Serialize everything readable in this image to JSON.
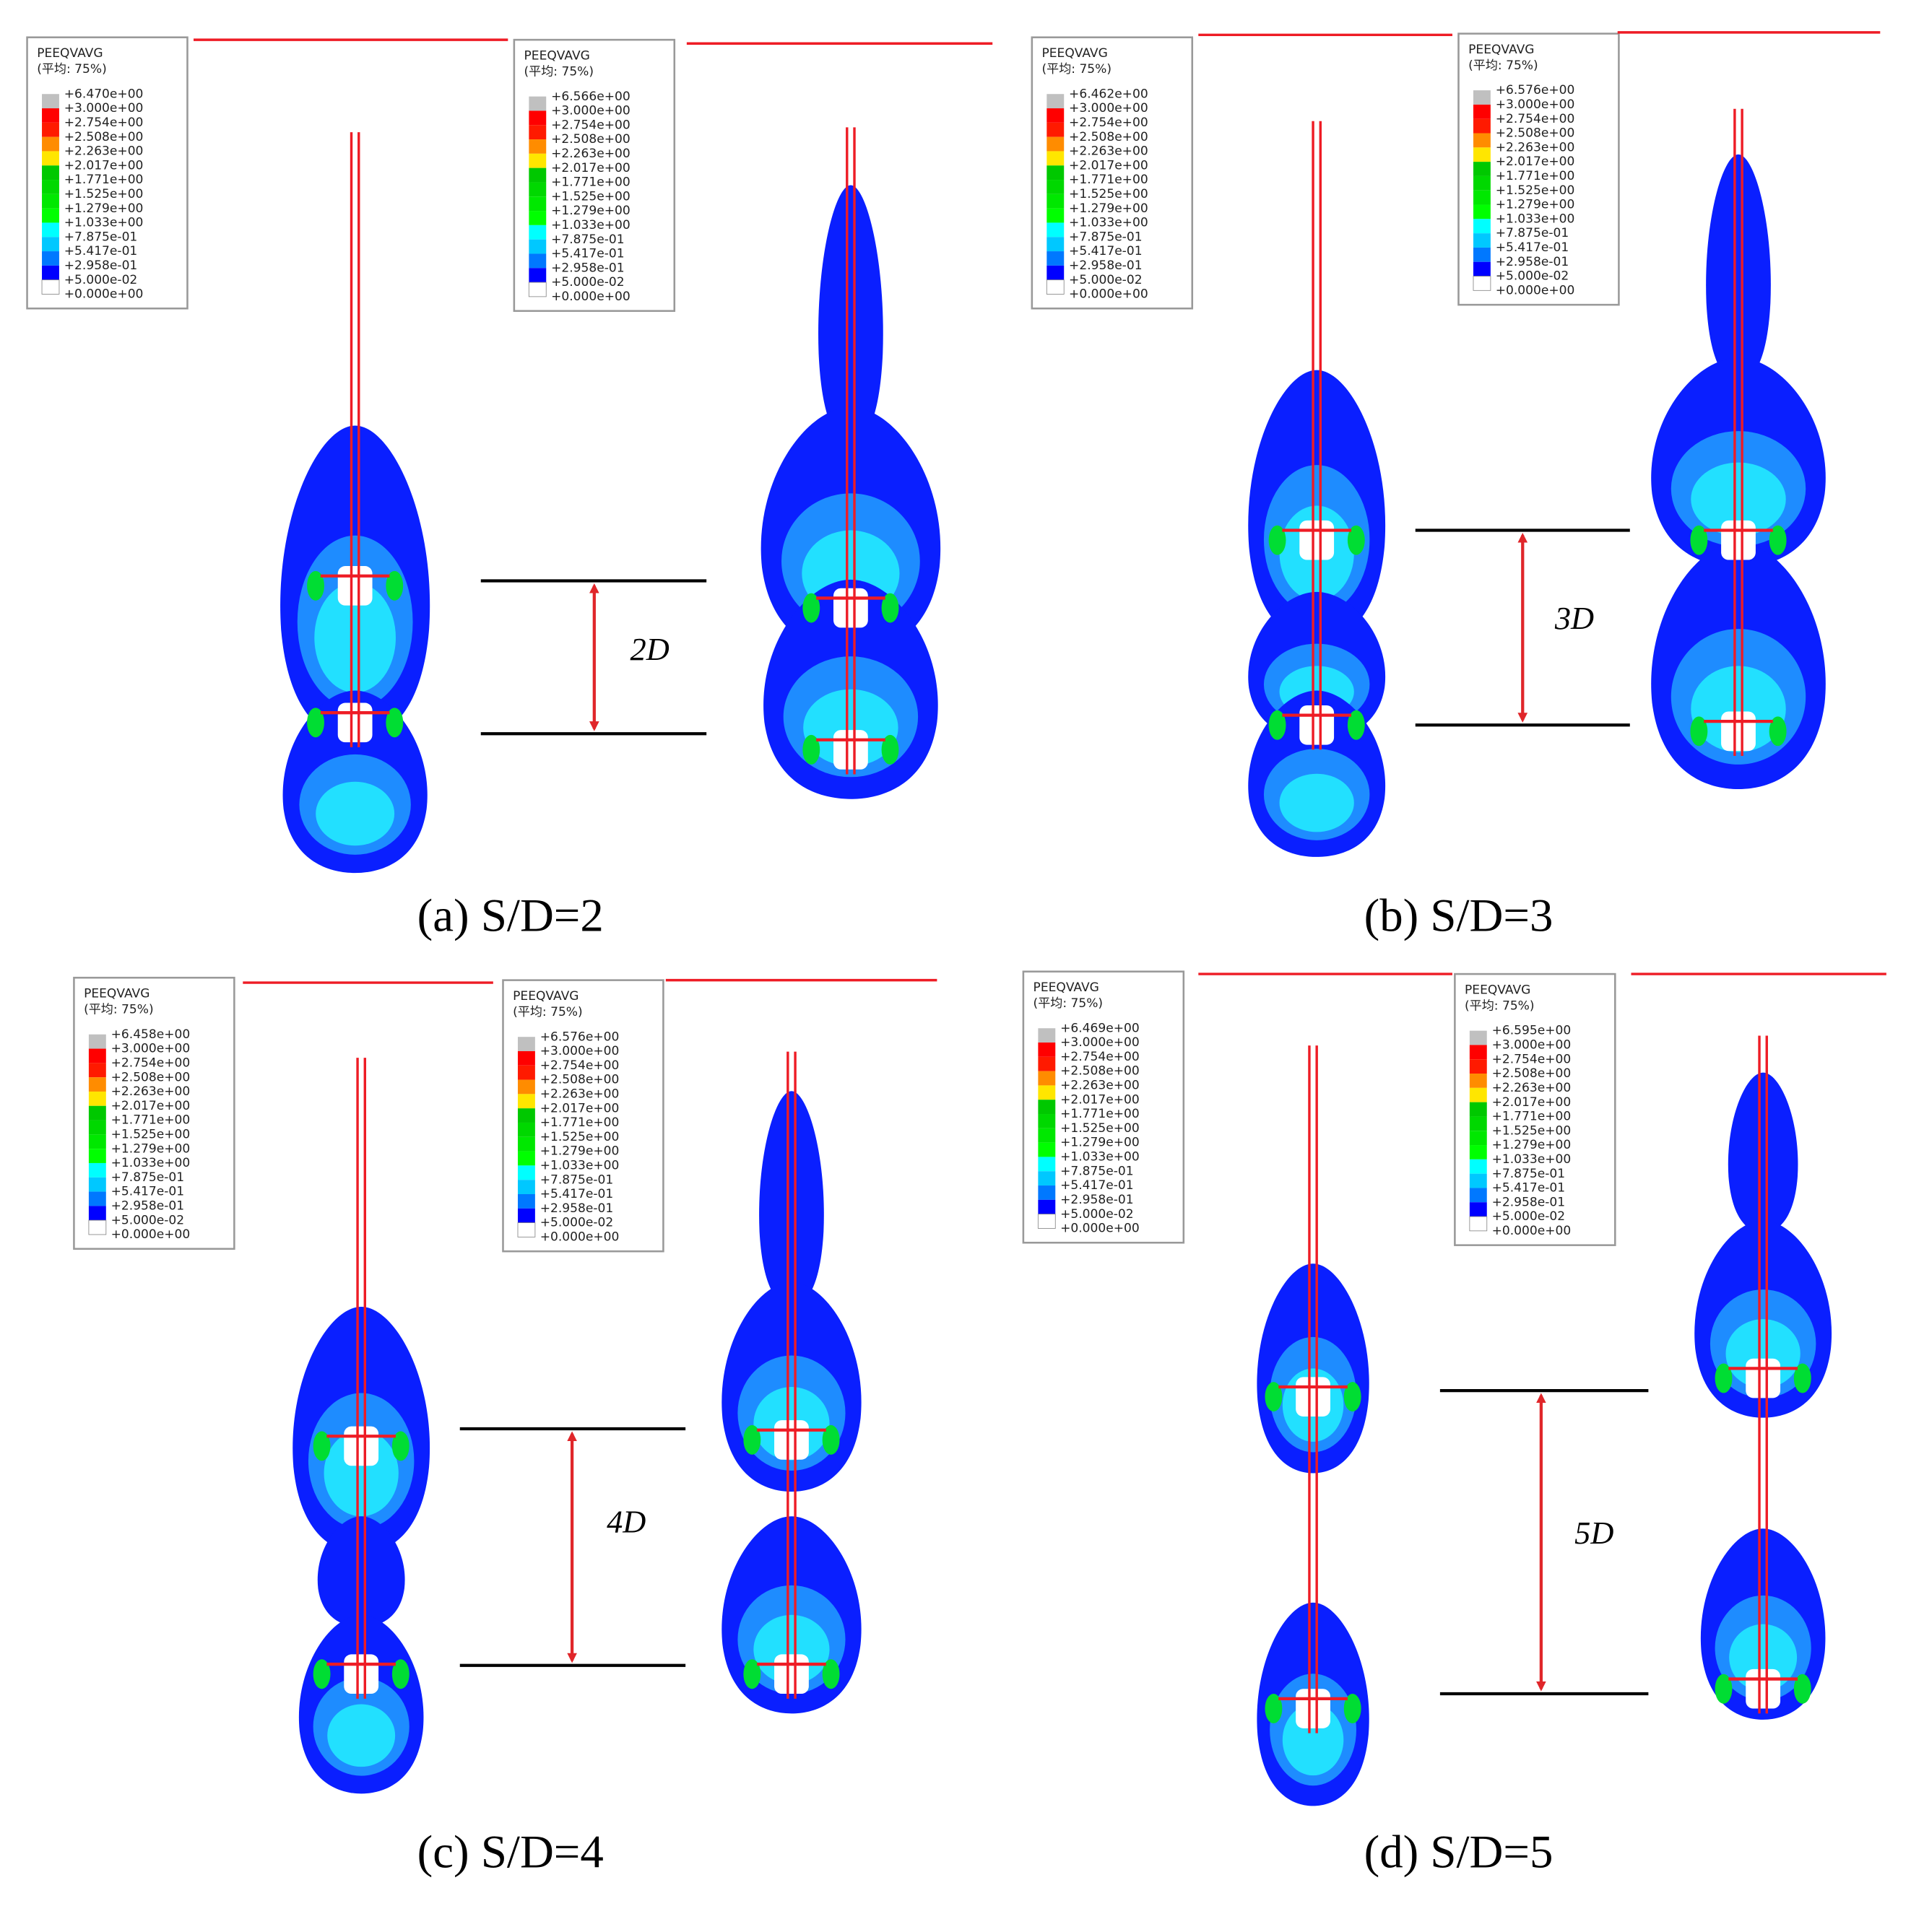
{
  "legend_title": "PEEQVAVG",
  "legend_subtitle": "(平均: 75%)",
  "legend_levels": [
    "+3.000e+00",
    "+2.754e+00",
    "+2.508e+00",
    "+2.263e+00",
    "+2.017e+00",
    "+1.771e+00",
    "+1.525e+00",
    "+1.279e+00",
    "+1.033e+00",
    "+7.875e-01",
    "+5.417e-01",
    "+2.958e-01",
    "+5.000e-02",
    "+0.000e+00"
  ],
  "panels": [
    {
      "caption": "(a) S/D=2",
      "spacing": "2D",
      "legend_max": [
        "+6.470e+00",
        "+6.566e+00"
      ]
    },
    {
      "caption": "(b) S/D=3",
      "spacing": "3D",
      "legend_max": [
        "+6.462e+00",
        "+6.576e+00"
      ]
    },
    {
      "caption": "(c) S/D=4",
      "spacing": "4D",
      "legend_max": [
        "+6.458e+00",
        "+6.576e+00"
      ]
    },
    {
      "caption": "(d) S/D=5",
      "spacing": "5D",
      "legend_max": [
        "+6.469e+00",
        "+6.595e+00"
      ]
    }
  ]
}
